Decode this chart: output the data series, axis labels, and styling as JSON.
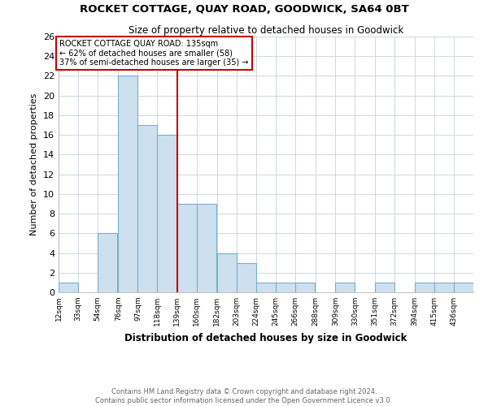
{
  "title": "ROCKET COTTAGE, QUAY ROAD, GOODWICK, SA64 0BT",
  "subtitle": "Size of property relative to detached houses in Goodwick",
  "xlabel": "Distribution of detached houses by size in Goodwick",
  "ylabel": "Number of detached properties",
  "bin_labels": [
    "12sqm",
    "33sqm",
    "54sqm",
    "76sqm",
    "97sqm",
    "118sqm",
    "139sqm",
    "160sqm",
    "182sqm",
    "203sqm",
    "224sqm",
    "245sqm",
    "266sqm",
    "288sqm",
    "309sqm",
    "330sqm",
    "351sqm",
    "372sqm",
    "394sqm",
    "415sqm",
    "436sqm"
  ],
  "bin_edges": [
    12,
    33,
    54,
    76,
    97,
    118,
    139,
    160,
    182,
    203,
    224,
    245,
    266,
    288,
    309,
    330,
    351,
    372,
    394,
    415,
    436
  ],
  "counts": [
    1,
    0,
    6,
    22,
    17,
    16,
    9,
    9,
    4,
    3,
    1,
    1,
    1,
    0,
    1,
    0,
    1,
    0,
    1,
    1,
    1
  ],
  "bar_color": "#cde0f0",
  "bar_edge_color": "#7aaecc",
  "vline_x": 139,
  "vline_color": "#cc0000",
  "annotation_title": "ROCKET COTTAGE QUAY ROAD: 135sqm",
  "annotation_line1": "← 62% of detached houses are smaller (58)",
  "annotation_line2": "37% of semi-detached houses are larger (35) →",
  "annotation_box_color": "#ffffff",
  "annotation_box_edge": "#cc0000",
  "ylim": [
    0,
    26
  ],
  "yticks": [
    0,
    2,
    4,
    6,
    8,
    10,
    12,
    14,
    16,
    18,
    20,
    22,
    24,
    26
  ],
  "footer1": "Contains HM Land Registry data © Crown copyright and database right 2024.",
  "footer2": "Contains public sector information licensed under the Open Government Licence v3.0.",
  "bg_color": "#ffffff",
  "grid_color": "#d0d8e0"
}
